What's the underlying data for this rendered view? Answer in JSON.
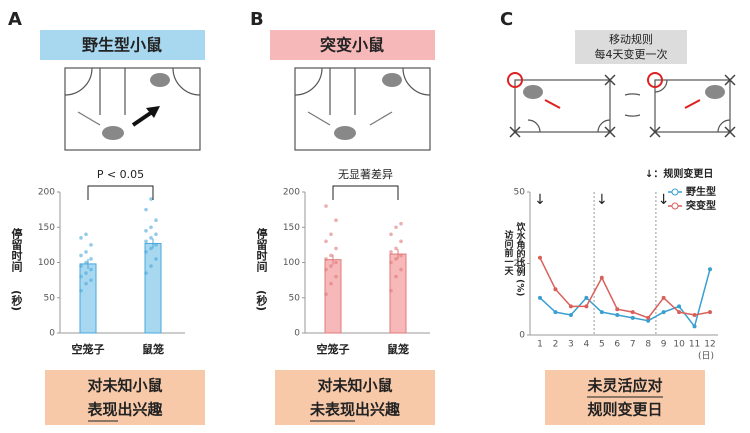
{
  "panels": [
    {
      "label": "A",
      "header": "野生型小鼠",
      "conclusion": [
        "对未知小鼠",
        "表现出兴趣"
      ]
    },
    {
      "label": "B",
      "header": "突变小鼠",
      "conclusion": [
        "对未知小鼠",
        "未表现出兴趣"
      ]
    },
    {
      "label": "C",
      "rule": [
        "移动规则",
        "每4天变更一次"
      ],
      "conclusion": [
        "未灵活应对",
        "规则变更日"
      ]
    }
  ],
  "chart_data": [
    {
      "type": "bar",
      "categories": [
        "空笼子",
        "鼠笼"
      ],
      "values": [
        98,
        127
      ],
      "errors": [
        7,
        7
      ],
      "points": [
        [
          60,
          70,
          75,
          80,
          85,
          90,
          95,
          100,
          105,
          110,
          115,
          125,
          135,
          140
        ],
        [
          85,
          95,
          105,
          115,
          120,
          125,
          130,
          135,
          140,
          145,
          150,
          160,
          175,
          190
        ]
      ],
      "color": "#a8d8f0",
      "edge_color": "#4aa8dc",
      "ylim": [
        0,
        200
      ],
      "yticks": [
        0,
        50,
        100,
        150,
        200
      ],
      "ylabel": "停留时间",
      "ylabel_unit": "(秒)",
      "annotation": "P < 0.05"
    },
    {
      "type": "bar",
      "categories": [
        "空笼子",
        "鼠笼"
      ],
      "values": [
        104,
        112
      ],
      "errors": [
        7,
        7
      ],
      "points": [
        [
          55,
          70,
          80,
          90,
          95,
          100,
          105,
          110,
          120,
          130,
          140,
          160,
          180
        ],
        [
          60,
          80,
          90,
          100,
          105,
          110,
          115,
          120,
          130,
          140,
          150,
          155
        ]
      ],
      "color": "#f6b8b8",
      "edge_color": "#e07a7a",
      "ylim": [
        0,
        200
      ],
      "yticks": [
        0,
        50,
        100,
        150,
        200
      ],
      "ylabel": "停留时间",
      "ylabel_unit": "(秒)",
      "annotation": "无显著差异"
    },
    {
      "type": "line",
      "x": [
        1,
        2,
        3,
        4,
        5,
        6,
        7,
        8,
        9,
        10,
        11,
        12
      ],
      "xlabel": "(日)",
      "series": [
        {
          "name": "野生型",
          "color": "#3a9fd0",
          "values": [
            13,
            8,
            7,
            13,
            8,
            7,
            6,
            5,
            8,
            10,
            3,
            23
          ]
        },
        {
          "name": "突变型",
          "color": "#d9605a",
          "values": [
            27,
            16,
            10,
            10,
            20,
            9,
            8,
            6,
            13,
            8,
            7,
            8
          ]
        }
      ],
      "ylim": [
        0,
        50
      ],
      "yticks": [
        0,
        25,
        50
      ],
      "ylabel": "访问前一天",
      "ylabel2": "饮水角的比例 (%)",
      "change_days": [
        1,
        5,
        9
      ],
      "change_label": "↓：规则变更日",
      "legend": "upper right"
    }
  ]
}
